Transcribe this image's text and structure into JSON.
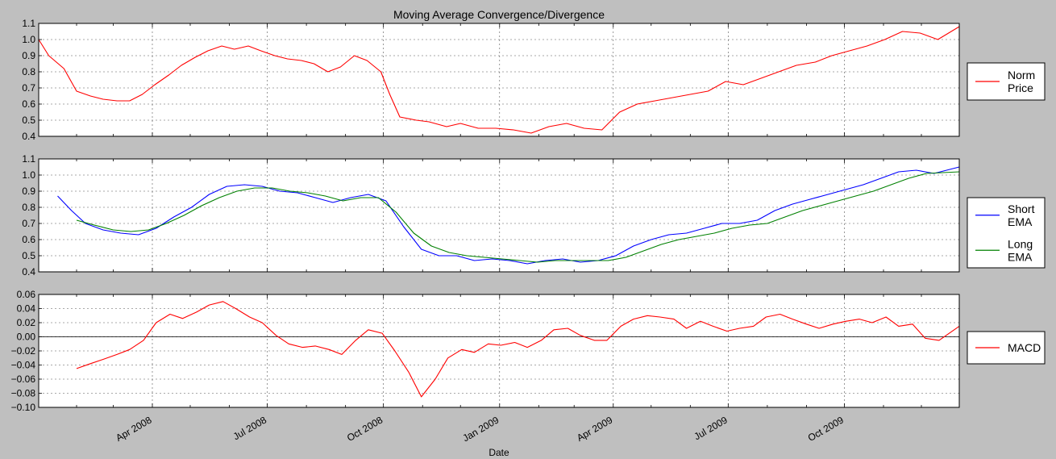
{
  "title": "Moving Average Convergence/Divergence",
  "xlabel": "Date",
  "x_tick_labels": [
    "Apr 2008",
    "Jul 2008",
    "Oct 2008",
    "Jan 2009",
    "Apr 2009",
    "Jul 2009",
    "Oct 2009"
  ],
  "colors": {
    "background": "#bfbfbf",
    "panel": "#ffffff",
    "red": "#ff0000",
    "blue": "#0000ff",
    "green": "#008000"
  },
  "chart_data": [
    {
      "type": "line",
      "x_range": [
        "2008-01-02",
        "2009-12-31"
      ],
      "ylim": [
        0.4,
        1.1
      ],
      "yticks": [
        "0.4",
        "0.5",
        "0.6",
        "0.7",
        "0.8",
        "0.9",
        "1.0",
        "1.1"
      ],
      "grid": true,
      "legend_position": "right",
      "series": [
        {
          "name": "Norm Price",
          "color": "#ff0000",
          "x": [
            "2008-01-02",
            "2008-01-10",
            "2008-01-22",
            "2008-02-01",
            "2008-02-12",
            "2008-02-22",
            "2008-03-04",
            "2008-03-14",
            "2008-03-24",
            "2008-04-03",
            "2008-04-14",
            "2008-04-24",
            "2008-05-05",
            "2008-05-15",
            "2008-05-26",
            "2008-06-05",
            "2008-06-16",
            "2008-06-26",
            "2008-07-07",
            "2008-07-17",
            "2008-07-28",
            "2008-08-07",
            "2008-08-18",
            "2008-08-28",
            "2008-09-08",
            "2008-09-18",
            "2008-09-29",
            "2008-10-06",
            "2008-10-14",
            "2008-10-27",
            "2008-11-06",
            "2008-11-20",
            "2008-12-01",
            "2008-12-15",
            "2008-12-29",
            "2009-01-12",
            "2009-01-26",
            "2009-02-09",
            "2009-02-23",
            "2009-03-09",
            "2009-03-23",
            "2009-04-06",
            "2009-04-20",
            "2009-05-04",
            "2009-05-18",
            "2009-06-01",
            "2009-06-15",
            "2009-06-29",
            "2009-07-13",
            "2009-07-27",
            "2009-08-10",
            "2009-08-24",
            "2009-09-08",
            "2009-09-21",
            "2009-10-05",
            "2009-10-19",
            "2009-11-02",
            "2009-11-16",
            "2009-11-30",
            "2009-12-14",
            "2009-12-31"
          ],
          "values": [
            1.0,
            0.9,
            0.82,
            0.68,
            0.65,
            0.63,
            0.62,
            0.62,
            0.66,
            0.72,
            0.78,
            0.84,
            0.89,
            0.93,
            0.96,
            0.94,
            0.96,
            0.93,
            0.9,
            0.88,
            0.87,
            0.85,
            0.8,
            0.83,
            0.9,
            0.87,
            0.8,
            0.66,
            0.52,
            0.5,
            0.49,
            0.46,
            0.48,
            0.45,
            0.45,
            0.44,
            0.42,
            0.46,
            0.48,
            0.45,
            0.44,
            0.55,
            0.6,
            0.62,
            0.64,
            0.66,
            0.68,
            0.74,
            0.72,
            0.76,
            0.8,
            0.84,
            0.86,
            0.9,
            0.93,
            0.96,
            1.0,
            1.05,
            1.04,
            1.0,
            1.08
          ]
        }
      ]
    },
    {
      "type": "line",
      "x_range": [
        "2008-01-02",
        "2009-12-31"
      ],
      "ylim": [
        0.4,
        1.1
      ],
      "yticks": [
        "0.4",
        "0.5",
        "0.6",
        "0.7",
        "0.8",
        "0.9",
        "1.0",
        "1.1"
      ],
      "grid": true,
      "legend_position": "right",
      "series": [
        {
          "name": "Short EMA",
          "color": "#0000ff",
          "x": [
            "2008-01-17",
            "2008-01-28",
            "2008-02-08",
            "2008-02-22",
            "2008-03-07",
            "2008-03-21",
            "2008-04-04",
            "2008-04-18",
            "2008-05-02",
            "2008-05-16",
            "2008-05-30",
            "2008-06-13",
            "2008-06-27",
            "2008-07-11",
            "2008-07-25",
            "2008-08-08",
            "2008-08-22",
            "2008-09-05",
            "2008-09-19",
            "2008-10-03",
            "2008-10-17",
            "2008-10-31",
            "2008-11-14",
            "2008-11-28",
            "2008-12-12",
            "2008-12-26",
            "2009-01-09",
            "2009-01-23",
            "2009-02-06",
            "2009-02-20",
            "2009-03-06",
            "2009-03-20",
            "2009-04-03",
            "2009-04-17",
            "2009-05-01",
            "2009-05-15",
            "2009-05-29",
            "2009-06-12",
            "2009-06-26",
            "2009-07-10",
            "2009-07-24",
            "2009-08-07",
            "2009-08-21",
            "2009-09-04",
            "2009-09-18",
            "2009-10-02",
            "2009-10-16",
            "2009-10-30",
            "2009-11-13",
            "2009-11-27",
            "2009-12-11",
            "2009-12-31"
          ],
          "values": [
            0.87,
            0.78,
            0.7,
            0.66,
            0.64,
            0.63,
            0.67,
            0.74,
            0.8,
            0.88,
            0.93,
            0.94,
            0.93,
            0.9,
            0.89,
            0.86,
            0.83,
            0.86,
            0.88,
            0.84,
            0.68,
            0.54,
            0.5,
            0.5,
            0.47,
            0.48,
            0.47,
            0.45,
            0.47,
            0.48,
            0.46,
            0.47,
            0.5,
            0.56,
            0.6,
            0.63,
            0.64,
            0.67,
            0.7,
            0.7,
            0.72,
            0.78,
            0.82,
            0.85,
            0.88,
            0.91,
            0.94,
            0.98,
            1.02,
            1.03,
            1.01,
            1.05
          ]
        },
        {
          "name": "Long EMA",
          "color": "#008000",
          "x": [
            "2008-02-01",
            "2008-02-15",
            "2008-03-01",
            "2008-03-15",
            "2008-03-29",
            "2008-04-12",
            "2008-04-26",
            "2008-05-10",
            "2008-05-24",
            "2008-06-07",
            "2008-06-21",
            "2008-07-05",
            "2008-07-19",
            "2008-08-02",
            "2008-08-16",
            "2008-08-30",
            "2008-09-13",
            "2008-09-27",
            "2008-10-11",
            "2008-10-25",
            "2008-11-08",
            "2008-11-22",
            "2008-12-06",
            "2008-12-20",
            "2009-01-03",
            "2009-01-17",
            "2009-01-31",
            "2009-02-14",
            "2009-02-28",
            "2009-03-14",
            "2009-03-28",
            "2009-04-11",
            "2009-04-25",
            "2009-05-09",
            "2009-05-23",
            "2009-06-06",
            "2009-06-20",
            "2009-07-04",
            "2009-07-18",
            "2009-08-01",
            "2009-08-15",
            "2009-08-29",
            "2009-09-12",
            "2009-09-26",
            "2009-10-10",
            "2009-10-24",
            "2009-11-07",
            "2009-11-21",
            "2009-12-05",
            "2009-12-31"
          ],
          "values": [
            0.72,
            0.69,
            0.66,
            0.65,
            0.66,
            0.7,
            0.75,
            0.81,
            0.86,
            0.9,
            0.92,
            0.92,
            0.9,
            0.89,
            0.87,
            0.84,
            0.86,
            0.86,
            0.77,
            0.64,
            0.56,
            0.52,
            0.5,
            0.49,
            0.48,
            0.47,
            0.46,
            0.47,
            0.47,
            0.47,
            0.47,
            0.49,
            0.53,
            0.57,
            0.6,
            0.62,
            0.64,
            0.67,
            0.69,
            0.7,
            0.74,
            0.78,
            0.81,
            0.84,
            0.87,
            0.9,
            0.94,
            0.98,
            1.01,
            1.02
          ]
        }
      ]
    },
    {
      "type": "line",
      "x_range": [
        "2008-01-02",
        "2009-12-31"
      ],
      "ylim": [
        -0.1,
        0.06
      ],
      "yticks": [
        "−0.10",
        "−0.08",
        "−0.06",
        "−0.04",
        "−0.02",
        "0.00",
        "0.02",
        "0.04",
        "0.06"
      ],
      "grid": true,
      "zero_line": true,
      "legend_position": "right",
      "series": [
        {
          "name": "MACD",
          "color": "#ff0000",
          "x": [
            "2008-02-01",
            "2008-02-12",
            "2008-02-22",
            "2008-03-04",
            "2008-03-14",
            "2008-03-25",
            "2008-04-04",
            "2008-04-15",
            "2008-04-25",
            "2008-05-06",
            "2008-05-16",
            "2008-05-27",
            "2008-06-06",
            "2008-06-17",
            "2008-06-27",
            "2008-07-08",
            "2008-07-18",
            "2008-07-29",
            "2008-08-08",
            "2008-08-19",
            "2008-08-29",
            "2008-09-09",
            "2008-09-19",
            "2008-09-30",
            "2008-10-10",
            "2008-10-21",
            "2008-10-31",
            "2008-11-11",
            "2008-11-21",
            "2008-12-02",
            "2008-12-12",
            "2008-12-23",
            "2009-01-02",
            "2009-01-13",
            "2009-01-23",
            "2009-02-03",
            "2009-02-13",
            "2009-02-24",
            "2009-03-06",
            "2009-03-17",
            "2009-03-27",
            "2009-04-07",
            "2009-04-17",
            "2009-04-28",
            "2009-05-08",
            "2009-05-19",
            "2009-05-29",
            "2009-06-09",
            "2009-06-19",
            "2009-06-30",
            "2009-07-10",
            "2009-07-21",
            "2009-07-31",
            "2009-08-11",
            "2009-08-21",
            "2009-09-01",
            "2009-09-11",
            "2009-09-22",
            "2009-10-02",
            "2009-10-13",
            "2009-10-23",
            "2009-11-03",
            "2009-11-13",
            "2009-11-24",
            "2009-12-04",
            "2009-12-15",
            "2009-12-31"
          ],
          "values": [
            -0.045,
            -0.038,
            -0.032,
            -0.025,
            -0.018,
            -0.005,
            0.02,
            0.032,
            0.026,
            0.035,
            0.045,
            0.05,
            0.04,
            0.028,
            0.02,
            0.002,
            -0.01,
            -0.015,
            -0.013,
            -0.018,
            -0.025,
            -0.005,
            0.01,
            0.005,
            -0.02,
            -0.05,
            -0.085,
            -0.06,
            -0.03,
            -0.018,
            -0.022,
            -0.01,
            -0.012,
            -0.008,
            -0.015,
            -0.005,
            0.01,
            0.012,
            0.002,
            -0.005,
            -0.005,
            0.015,
            0.025,
            0.03,
            0.028,
            0.025,
            0.012,
            0.022,
            0.015,
            0.008,
            0.012,
            0.015,
            0.028,
            0.032,
            0.025,
            0.018,
            0.012,
            0.018,
            0.022,
            0.025,
            0.02,
            0.028,
            0.015,
            0.018,
            -0.002,
            -0.005,
            0.015
          ]
        }
      ]
    }
  ]
}
